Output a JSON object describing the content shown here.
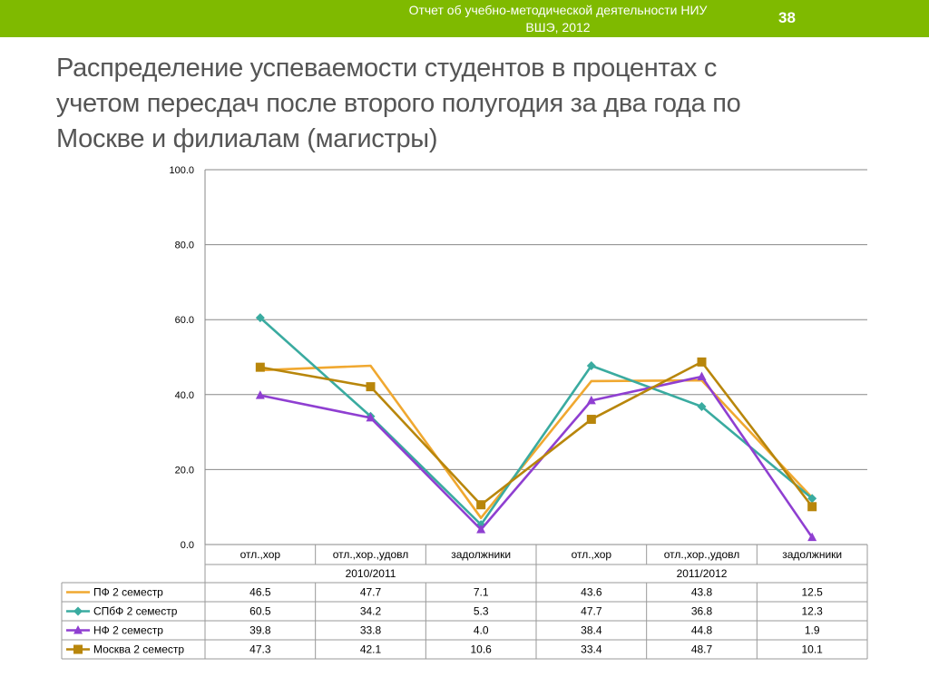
{
  "header": {
    "report_line1": "Отчет об учебно-методической деятельности НИУ",
    "report_line2": "ВШЭ, 2012",
    "slide_number": "38"
  },
  "title": {
    "line1": "Распределение успеваемости студентов в процентах с",
    "line2": "учетом пересдач  после второго полугодия за два года  по",
    "line3": "Москве и филиалам (магистры)"
  },
  "colors": {
    "header_bar": "#7fba00",
    "ПФ 2 семестр": "#f0a830",
    "СПбФ 2 семестр": "#3aaba0",
    "НФ 2 семестр": "#8f3fd1",
    "Москва 2 семестр": "#b8860b"
  },
  "chart_data": {
    "type": "line",
    "categories": [
      "отл.,хор",
      "отл.,хор.,удовл",
      "задолжники",
      "отл.,хор",
      "отл.,хор.,удовл",
      "задолжники"
    ],
    "groups": [
      {
        "label": "2010/2011",
        "span": 3
      },
      {
        "label": "2011/2012",
        "span": 3
      }
    ],
    "y_ticks": [
      "100.0",
      "80.0",
      "60.0",
      "40.0",
      "20.0",
      "0.0"
    ],
    "ylim": [
      0,
      100
    ],
    "grid": true,
    "legend": "data-table",
    "series": [
      {
        "name": "ПФ 2 семестр",
        "marker": "none",
        "color": "#f0a830",
        "values": [
          46.5,
          47.7,
          7.1,
          43.6,
          43.8,
          12.5
        ],
        "labels": [
          "46.5",
          "47.7",
          "7.1",
          "43.6",
          "43.8",
          "12.5"
        ]
      },
      {
        "name": "СПбФ 2 семестр",
        "marker": "diamond",
        "color": "#3aaba0",
        "values": [
          60.5,
          34.2,
          5.3,
          47.7,
          36.8,
          12.3
        ],
        "labels": [
          "60.5",
          "34.2",
          "5.3",
          "47.7",
          "36.8",
          "12.3"
        ]
      },
      {
        "name": "НФ 2 семестр",
        "marker": "triangle",
        "color": "#8f3fd1",
        "values": [
          39.8,
          33.8,
          4.0,
          38.4,
          44.8,
          1.9
        ],
        "labels": [
          "39.8",
          "33.8",
          "4.0",
          "38.4",
          "44.8",
          "1.9"
        ]
      },
      {
        "name": "Москва 2 семестр",
        "marker": "square",
        "color": "#b8860b",
        "values": [
          47.3,
          42.1,
          10.6,
          33.4,
          48.7,
          10.1
        ],
        "labels": [
          "47.3",
          "42.1",
          "10.6",
          "33.4",
          "48.7",
          "10.1"
        ]
      }
    ]
  }
}
